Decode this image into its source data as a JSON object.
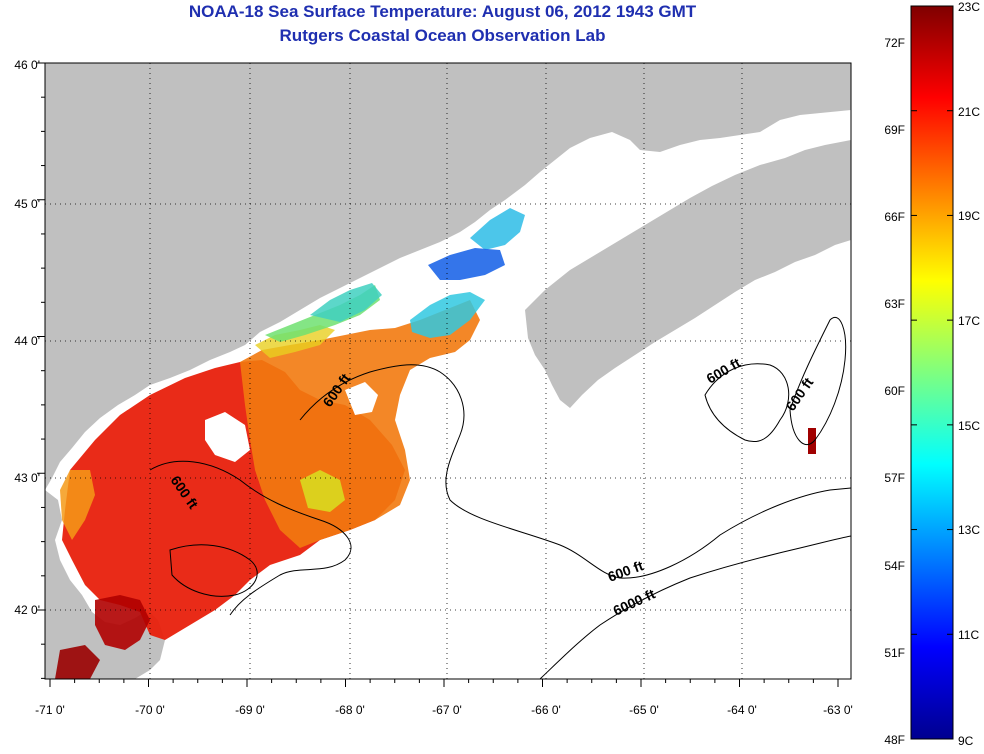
{
  "header": {
    "title_line1": "NOAA-18 Sea Surface Temperature:  August 06, 2012 1943 GMT",
    "title_line2": "Rutgers Coastal Ocean Observation Lab"
  },
  "map": {
    "lon_labels": [
      "-71 0'",
      "-70 0'",
      "-69 0'",
      "-68 0'",
      "-67 0'",
      "-66 0'",
      "-65 0'",
      "-64 0'",
      "-63 0'"
    ],
    "lat_labels": [
      "46 0'",
      "45 0'",
      "44 0'",
      "43 0'",
      "42 0'"
    ],
    "contour_labels": [
      "600 ft",
      "600 ft",
      "600 ft",
      "600 ft",
      "600 ft",
      "6000 ft"
    ],
    "colors": {
      "land": "#c0c0c0",
      "ocean_no_data": "#ffffff"
    }
  },
  "colorbar": {
    "celsius_labels": [
      "23C",
      "21C",
      "19C",
      "17C",
      "15C",
      "13C",
      "11C",
      "9C"
    ],
    "fahrenheit_labels": [
      "72F",
      "69F",
      "66F",
      "63F",
      "60F",
      "57F",
      "54F",
      "51F",
      "48F"
    ],
    "range_c": [
      9,
      23
    ],
    "colormap": "jet"
  }
}
